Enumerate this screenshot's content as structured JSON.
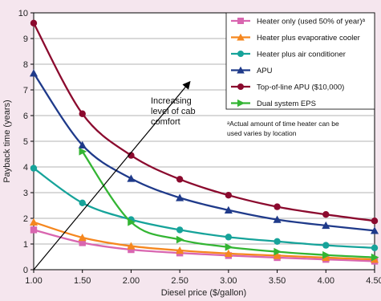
{
  "chart_data": {
    "type": "line",
    "xlabel": "Diesel price ($/gallon)",
    "ylabel": "Payback time (years)",
    "xlim": [
      1.0,
      4.5
    ],
    "ylim": [
      0,
      10
    ],
    "x_ticks": [
      "1.00",
      "1.50",
      "2.00",
      "2.50",
      "3.00",
      "3.50",
      "4.00",
      "4.50"
    ],
    "y_ticks": [
      "0",
      "1",
      "2",
      "3",
      "4",
      "5",
      "6",
      "7",
      "8",
      "9",
      "10"
    ],
    "grid": "horizontal",
    "legend_position": "top-right",
    "series": [
      {
        "name": "Heater only (used 50% of year)ᵃ",
        "color": "#d966b0",
        "marker": "square",
        "x": [
          1.0,
          1.5,
          2.0,
          2.5,
          3.0,
          3.5,
          4.0,
          4.5
        ],
        "y": [
          1.55,
          1.05,
          0.78,
          0.65,
          0.55,
          0.47,
          0.4,
          0.33
        ]
      },
      {
        "name": "Heater plus evaporative cooler",
        "color": "#f5871f",
        "marker": "triangle",
        "x": [
          1.0,
          1.5,
          2.0,
          2.5,
          3.0,
          3.5,
          4.0,
          4.5
        ],
        "y": [
          1.85,
          1.25,
          0.92,
          0.75,
          0.63,
          0.55,
          0.47,
          0.4
        ]
      },
      {
        "name": "Heater plus air conditioner",
        "color": "#16a39a",
        "marker": "circle",
        "x": [
          1.0,
          1.5,
          2.0,
          2.5,
          3.0,
          3.5,
          4.0,
          4.5
        ],
        "y": [
          3.95,
          2.6,
          1.95,
          1.55,
          1.27,
          1.1,
          0.95,
          0.85
        ]
      },
      {
        "name": "APU",
        "color": "#1f3a8a",
        "marker": "triangle",
        "x": [
          1.0,
          1.5,
          2.0,
          2.5,
          3.0,
          3.5,
          4.0,
          4.5
        ],
        "y": [
          7.65,
          4.85,
          3.55,
          2.8,
          2.32,
          1.95,
          1.72,
          1.52
        ]
      },
      {
        "name": "Top-of-line APU ($10,000)",
        "color": "#8b0a2e",
        "marker": "circle",
        "x": [
          1.0,
          1.5,
          2.0,
          2.5,
          3.0,
          3.5,
          4.0,
          4.5
        ],
        "y": [
          9.6,
          6.07,
          4.45,
          3.52,
          2.9,
          2.45,
          2.15,
          1.9
        ]
      },
      {
        "name": "Dual system EPS",
        "color": "#33b533",
        "marker": "triangle-right",
        "x": [
          1.5,
          2.0,
          2.5,
          3.0,
          3.5,
          4.0,
          4.5
        ],
        "y": [
          4.6,
          1.85,
          1.17,
          0.88,
          0.7,
          0.57,
          0.48
        ]
      }
    ],
    "annotation": {
      "lines": [
        "Increasing",
        "level of cab",
        "comfort"
      ],
      "arrow_from": [
        1.0,
        0.0
      ],
      "arrow_to": [
        2.6,
        7.3
      ]
    },
    "footnote": [
      "ᵃActual amount of time heater can be",
      "used varies by location"
    ]
  }
}
